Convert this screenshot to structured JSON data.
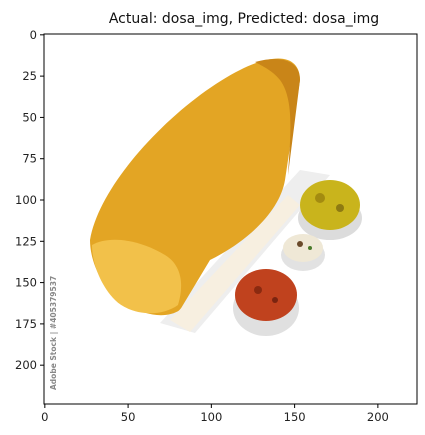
{
  "figure": {
    "title": "Actual: dosa_img, Predicted: dosa_img",
    "watermark": "Adobe Stock | #405379537"
  },
  "axes": {
    "x_ticks": [
      {
        "value": 0,
        "label": "0"
      },
      {
        "value": 50,
        "label": "50"
      },
      {
        "value": 100,
        "label": "100"
      },
      {
        "value": 150,
        "label": "150"
      },
      {
        "value": 200,
        "label": "200"
      }
    ],
    "y_ticks": [
      {
        "value": 0,
        "label": "0"
      },
      {
        "value": 25,
        "label": "25"
      },
      {
        "value": 50,
        "label": "50"
      },
      {
        "value": 75,
        "label": "75"
      },
      {
        "value": 100,
        "label": "100"
      },
      {
        "value": 125,
        "label": "125"
      },
      {
        "value": 150,
        "label": "150"
      },
      {
        "value": 175,
        "label": "175"
      },
      {
        "value": 200,
        "label": "200"
      }
    ],
    "image_size": [
      224,
      224
    ]
  },
  "colors": {
    "dosa": "#e3a524",
    "dosa_light": "#f2c14a",
    "chutney_yellow": "#c9b41c",
    "coconut_chutney": "#efe8d6",
    "sambar": "#c0421e",
    "plate": "#f4f4f4"
  }
}
